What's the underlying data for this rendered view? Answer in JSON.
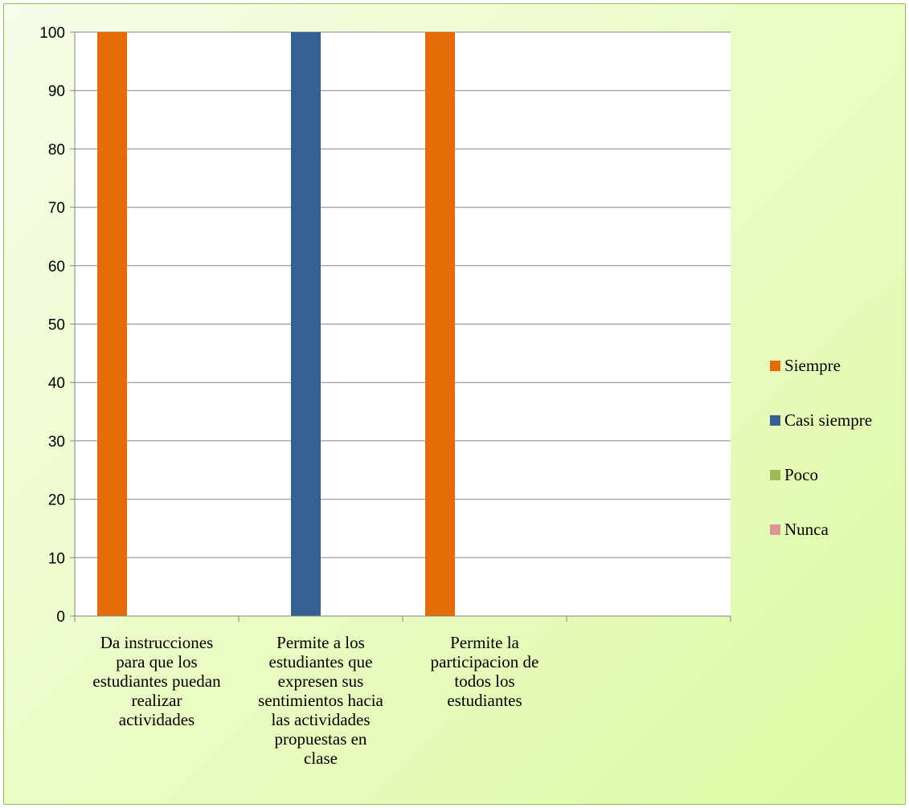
{
  "chart_data": {
    "type": "bar",
    "title": "",
    "xlabel": "",
    "ylabel": "",
    "ylim": [
      0,
      100
    ],
    "yticks": [
      0,
      10,
      20,
      30,
      40,
      50,
      60,
      70,
      80,
      90,
      100
    ],
    "grid": true,
    "legend_position": "right",
    "categories": [
      [
        "Da instrucciones",
        "para que los",
        "estudiantes puedan",
        "realizar",
        "actividades"
      ],
      [
        "Permite a los",
        "estudiantes que",
        "expresen sus",
        "sentimientos hacia",
        "las actividades",
        "propuestas en",
        "clase"
      ],
      [
        "Permite la",
        "participacion de",
        "todos los",
        "estudiantes"
      ],
      []
    ],
    "series": [
      {
        "name": "Siempre",
        "color": "#e36c09",
        "values": [
          100,
          0,
          100,
          0
        ]
      },
      {
        "name": "Casi siempre",
        "color": "#376092",
        "values": [
          0,
          100,
          0,
          0
        ]
      },
      {
        "name": "Poco",
        "color": "#9bbb59",
        "values": [
          0,
          0,
          0,
          0
        ]
      },
      {
        "name": "Nunca",
        "color": "#d99694",
        "values": [
          0,
          0,
          0,
          0
        ]
      }
    ]
  }
}
